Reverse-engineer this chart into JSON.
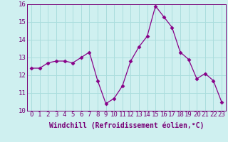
{
  "x": [
    0,
    1,
    2,
    3,
    4,
    5,
    6,
    7,
    8,
    9,
    10,
    11,
    12,
    13,
    14,
    15,
    16,
    17,
    18,
    19,
    20,
    21,
    22,
    23
  ],
  "y": [
    12.4,
    12.4,
    12.7,
    12.8,
    12.8,
    12.7,
    13.0,
    13.3,
    11.7,
    10.4,
    10.7,
    11.4,
    12.8,
    13.6,
    14.2,
    15.9,
    15.3,
    14.7,
    13.3,
    12.9,
    11.8,
    12.1,
    11.7,
    10.5
  ],
  "line_color": "#880088",
  "marker": "D",
  "marker_size": 2.5,
  "bg_color": "#cff0f0",
  "grid_color": "#aadddd",
  "xlabel": "Windchill (Refroidissement éolien,°C)",
  "xlabel_fontsize": 7,
  "tick_fontsize": 6.5,
  "tick_color": "#770077",
  "ylim": [
    10,
    16
  ],
  "xlim": [
    -0.5,
    23.5
  ],
  "yticks": [
    10,
    11,
    12,
    13,
    14,
    15,
    16
  ],
  "xticks": [
    0,
    1,
    2,
    3,
    4,
    5,
    6,
    7,
    8,
    9,
    10,
    11,
    12,
    13,
    14,
    15,
    16,
    17,
    18,
    19,
    20,
    21,
    22,
    23
  ]
}
